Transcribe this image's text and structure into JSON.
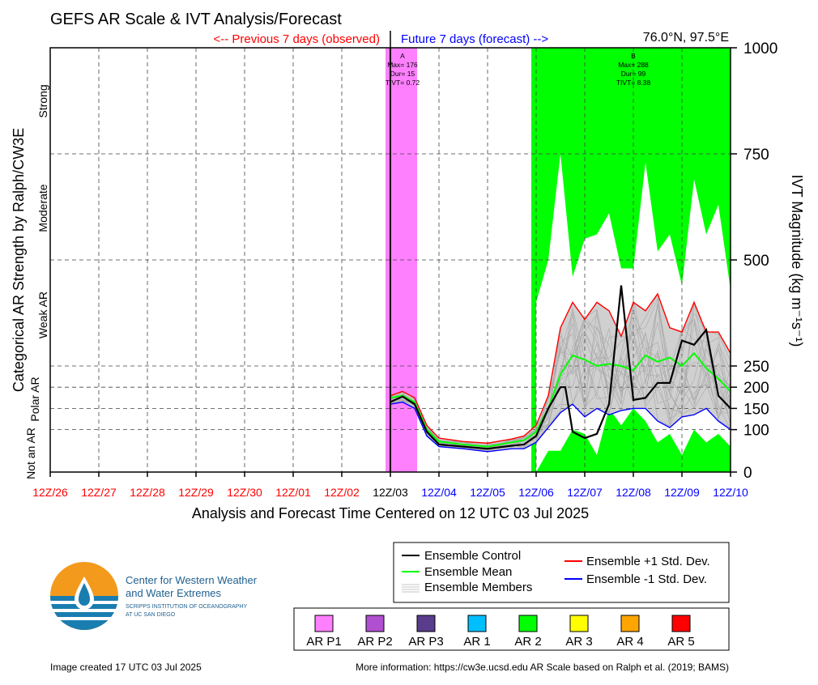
{
  "title": "GEFS AR Scale & IVT Analysis/Forecast",
  "header": {
    "previous_label": "<-- Previous 7 days (observed)",
    "future_label": "Future 7 days (forecast) -->",
    "location": "76.0°N, 97.5°E"
  },
  "colors": {
    "observed": "#ff0000",
    "forecast": "#0000ff",
    "ar_p1": "#ff80ff",
    "ar_p2": "#b050d0",
    "ar_p3": "#5a3c8c",
    "ar_1": "#00bfff",
    "ar_2": "#00ff00",
    "ar_3": "#ffff00",
    "ar_4": "#ffa500",
    "ar_5": "#ff0000",
    "control": "#000000",
    "mean": "#00ff00",
    "plus_std": "#ff0000",
    "minus_std": "#0000ff",
    "members": "#a8a8a8",
    "spread_fill": "#d0d0d0"
  },
  "left_axis": {
    "title": "Categorical AR Strength by Ralph/CW3E",
    "categories": [
      "Strong",
      "Moderate",
      "Weak AR",
      "Polar AR",
      "Not an AR"
    ]
  },
  "right_axis": {
    "title": "IVT Magnitude (kg m⁻¹s⁻¹)"
  },
  "xaxis_title": "Analysis and Forecast Time Centered on 12 UTC 03 Jul 2025",
  "events": [
    {
      "letter": "A",
      "max": "Max= 176",
      "dur": "Dur= 15",
      "tivt": "TIVT= 0.72"
    },
    {
      "letter": "B",
      "max": "Max= 288",
      "dur": "Dur= 99",
      "tivt": "TIVT= 8.38"
    }
  ],
  "legend": {
    "control": "Ensemble Control",
    "mean": "Ensemble Mean",
    "members": "Ensemble Members",
    "plus_std": "Ensemble +1 Std. Dev.",
    "minus_std": "Ensemble -1 Std. Dev."
  },
  "ar_legend": [
    "AR P1",
    "AR P2",
    "AR P3",
    "AR 1",
    "AR 2",
    "AR 3",
    "AR 4",
    "AR 5"
  ],
  "logo": {
    "line1": "Center for Western Weather",
    "line2": "and Water Extremes",
    "line3": "SCRIPPS INSTITUTION OF OCEANOGRAPHY",
    "line4": "AT UC SAN DIEGO"
  },
  "footer": {
    "created": "Image created 17 UTC 03 Jul 2025",
    "info": "More information: https://cw3e.ucsd.edu AR Scale based on Ralph et al. (2019; BAMS)"
  },
  "chart_data": {
    "type": "line",
    "xlabel": "Analysis and Forecast Time Centered on 12 UTC 03 Jul 2025",
    "ylabel": "IVT Magnitude (kg m⁻¹s⁻¹)",
    "ylim": [
      0,
      1000
    ],
    "xlim_days": [
      -7,
      7
    ],
    "y_ticks": [
      0,
      100,
      150,
      200,
      250,
      500,
      750,
      1000
    ],
    "x_ticks": [
      "12Z/26",
      "12Z/27",
      "12Z/28",
      "12Z/29",
      "12Z/30",
      "12Z/01",
      "12Z/02",
      "12Z/03",
      "12Z/04",
      "12Z/05",
      "12Z/06",
      "12Z/07",
      "12Z/08",
      "12Z/09",
      "12Z/10"
    ],
    "observed_tick_count": 7,
    "analysis_tick_index": 7,
    "grid": true,
    "ar_periods": [
      {
        "category": "AR P1",
        "start": -0.1,
        "end": 0.55
      },
      {
        "category": "AR 2",
        "start": 2.9,
        "end": 7.0
      }
    ],
    "series": [
      {
        "name": "Ensemble Control",
        "x": [
          0,
          0.25,
          0.5,
          0.75,
          1.0,
          1.5,
          2.0,
          2.5,
          2.75,
          3.0,
          3.25,
          3.5,
          3.6,
          3.75,
          4.0,
          4.25,
          4.5,
          4.75,
          5.0,
          5.25,
          5.5,
          5.75,
          6.0,
          6.25,
          6.5,
          6.75,
          7.0
        ],
        "y": [
          165,
          178,
          160,
          95,
          65,
          60,
          55,
          62,
          65,
          85,
          150,
          200,
          200,
          95,
          80,
          90,
          160,
          440,
          170,
          175,
          210,
          210,
          310,
          300,
          335,
          180,
          150
        ]
      },
      {
        "name": "Ensemble Mean",
        "x": [
          0,
          0.25,
          0.5,
          0.75,
          1.0,
          1.5,
          2.0,
          2.5,
          2.75,
          3.0,
          3.25,
          3.5,
          3.75,
          4.0,
          4.25,
          4.5,
          4.75,
          5.0,
          5.25,
          5.5,
          5.75,
          6.0,
          6.25,
          6.5,
          6.75,
          7.0
        ],
        "y": [
          175,
          180,
          165,
          100,
          72,
          65,
          60,
          70,
          75,
          95,
          150,
          230,
          275,
          265,
          250,
          255,
          250,
          240,
          275,
          260,
          270,
          250,
          280,
          245,
          220,
          190
        ]
      },
      {
        "name": "Ensemble +1 Std. Dev.",
        "x": [
          0,
          0.25,
          0.5,
          0.75,
          1.0,
          1.5,
          2.0,
          2.5,
          2.75,
          3.0,
          3.25,
          3.5,
          3.75,
          4.0,
          4.25,
          4.5,
          4.75,
          5.0,
          5.25,
          5.5,
          5.75,
          6.0,
          6.25,
          6.5,
          6.75,
          7.0
        ],
        "y": [
          180,
          190,
          175,
          110,
          80,
          72,
          68,
          78,
          85,
          110,
          180,
          340,
          400,
          360,
          400,
          380,
          320,
          400,
          380,
          420,
          340,
          330,
          400,
          330,
          330,
          280
        ]
      },
      {
        "name": "Ensemble -1 Std. Dev.",
        "x": [
          0,
          0.25,
          0.5,
          0.75,
          1.0,
          1.5,
          2.0,
          2.5,
          2.75,
          3.0,
          3.25,
          3.5,
          3.75,
          4.0,
          4.25,
          4.5,
          4.75,
          5.0,
          5.25,
          5.5,
          5.75,
          6.0,
          6.25,
          6.5,
          6.75,
          7.0
        ],
        "y": [
          160,
          165,
          150,
          85,
          60,
          55,
          48,
          55,
          55,
          70,
          105,
          140,
          160,
          130,
          150,
          135,
          145,
          150,
          150,
          120,
          105,
          130,
          135,
          150,
          120,
          100
        ]
      }
    ],
    "member_envelope": {
      "x": [
        3.0,
        3.25,
        3.5,
        3.75,
        4.0,
        4.25,
        4.5,
        4.75,
        5.0,
        5.25,
        5.5,
        5.75,
        6.0,
        6.25,
        6.5,
        6.75,
        7.0
      ],
      "max": [
        400,
        500,
        750,
        460,
        550,
        560,
        610,
        480,
        480,
        730,
        520,
        560,
        440,
        690,
        560,
        630,
        430
      ],
      "min": [
        0,
        50,
        50,
        100,
        90,
        40,
        150,
        110,
        150,
        120,
        70,
        90,
        40,
        100,
        70,
        90,
        60
      ]
    }
  }
}
